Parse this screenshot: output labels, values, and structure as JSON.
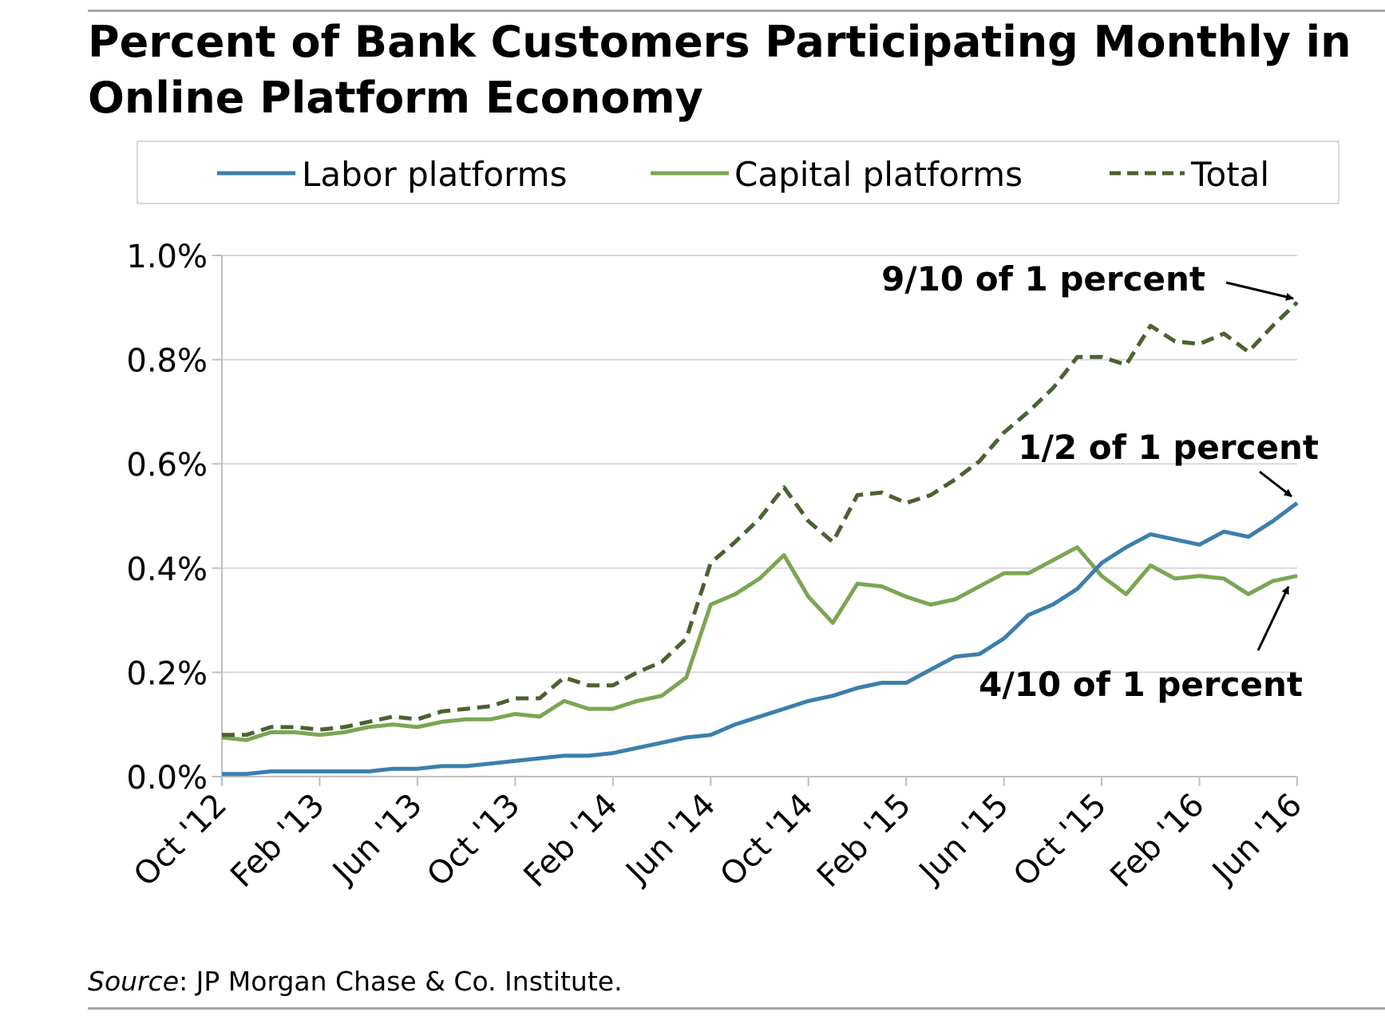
{
  "title": "Percent of Bank Customers Participating Monthly in Online Platform Economy",
  "source": {
    "label": "Source",
    "text": ": JP Morgan Chase & Co. Institute."
  },
  "colors": {
    "labor": "#3c7fac",
    "capital": "#7ba654",
    "total": "#4b6130",
    "grid": "#d9d9d9",
    "axis": "#bfbfbf",
    "rule": "#a6a6a6"
  },
  "chart_data": {
    "type": "line",
    "title": "Percent of Bank Customers Participating Monthly in Online Platform Economy",
    "xlabel": "",
    "ylabel": "",
    "ylim": [
      0,
      1.0
    ],
    "y_ticks": [
      "0.0%",
      "0.2%",
      "0.4%",
      "0.6%",
      "0.8%",
      "1.0%"
    ],
    "y_tick_values": [
      0,
      0.2,
      0.4,
      0.6,
      0.8,
      1.0
    ],
    "x_ticks": [
      "Oct '12",
      "Feb '13",
      "Jun '13",
      "Oct '13",
      "Feb '14",
      "Jun '14",
      "Oct '14",
      "Feb '15",
      "Jun '15",
      "Oct '15",
      "Feb '16",
      "Jun '16"
    ],
    "legend": {
      "placement": "top",
      "entries": [
        "Labor platforms",
        "Capital platforms",
        "Total"
      ]
    },
    "grid": true,
    "months": 45,
    "series": [
      {
        "name": "Labor platforms",
        "style": "solid",
        "values": [
          0.005,
          0.005,
          0.01,
          0.01,
          0.01,
          0.01,
          0.01,
          0.015,
          0.015,
          0.02,
          0.02,
          0.025,
          0.03,
          0.035,
          0.04,
          0.04,
          0.045,
          0.055,
          0.065,
          0.075,
          0.08,
          0.1,
          0.115,
          0.13,
          0.145,
          0.155,
          0.17,
          0.18,
          0.18,
          0.205,
          0.23,
          0.235,
          0.265,
          0.31,
          0.33,
          0.36,
          0.41,
          0.44,
          0.465,
          0.455,
          0.445,
          0.47,
          0.46,
          0.49,
          0.525
        ]
      },
      {
        "name": "Capital platforms",
        "style": "solid",
        "values": [
          0.075,
          0.07,
          0.085,
          0.085,
          0.08,
          0.085,
          0.095,
          0.1,
          0.095,
          0.105,
          0.11,
          0.11,
          0.12,
          0.115,
          0.145,
          0.13,
          0.13,
          0.145,
          0.155,
          0.19,
          0.33,
          0.35,
          0.38,
          0.425,
          0.345,
          0.295,
          0.37,
          0.365,
          0.345,
          0.33,
          0.34,
          0.365,
          0.39,
          0.39,
          0.415,
          0.44,
          0.385,
          0.35,
          0.405,
          0.38,
          0.385,
          0.38,
          0.35,
          0.375,
          0.385
        ]
      },
      {
        "name": "Total",
        "style": "dashed",
        "values": [
          0.08,
          0.08,
          0.095,
          0.095,
          0.09,
          0.095,
          0.105,
          0.115,
          0.11,
          0.125,
          0.13,
          0.135,
          0.15,
          0.15,
          0.19,
          0.175,
          0.175,
          0.2,
          0.22,
          0.265,
          0.41,
          0.45,
          0.495,
          0.555,
          0.49,
          0.45,
          0.54,
          0.545,
          0.525,
          0.54,
          0.57,
          0.605,
          0.66,
          0.7,
          0.745,
          0.805,
          0.805,
          0.79,
          0.865,
          0.835,
          0.83,
          0.85,
          0.815,
          0.865,
          0.91
        ]
      }
    ],
    "annotations": [
      {
        "text": "9/10 of 1 percent",
        "series": "Total",
        "month_index": 44,
        "value": 0.91
      },
      {
        "text": "1/2 of 1 percent",
        "series": "Labor platforms",
        "month_index": 44,
        "value": 0.525
      },
      {
        "text": "4/10 of 1 percent",
        "series": "Capital platforms",
        "month_index": 44,
        "value": 0.385
      }
    ]
  }
}
